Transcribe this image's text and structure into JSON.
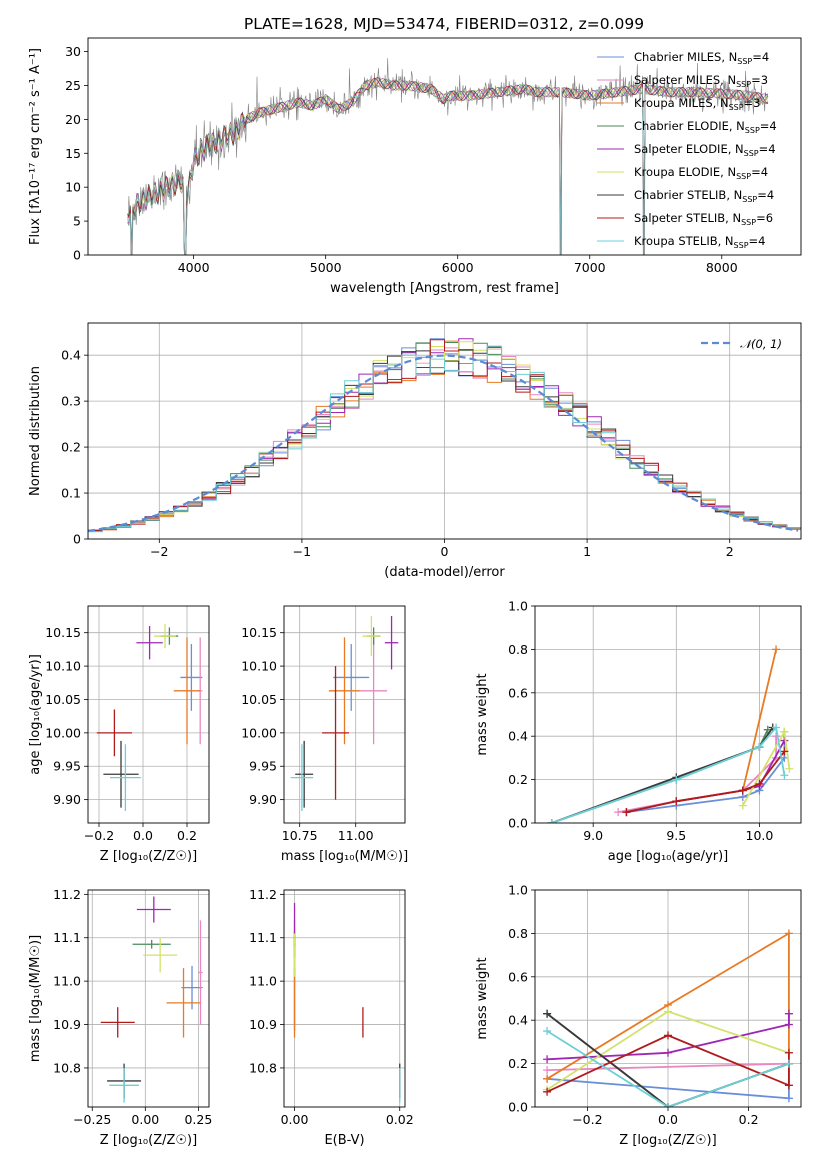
{
  "figure": {
    "title": "PLATE=1628, MJD=53474, FIBERID=0312, z=0.099"
  },
  "legend_models": [
    {
      "name": "Chabrier MILES",
      "nssp": "4",
      "color": "#6a8fd8"
    },
    {
      "name": "Salpeter MILES",
      "nssp": "3",
      "color": "#e887c2"
    },
    {
      "name": "Kroupa MILES",
      "nssp": "3",
      "color": "#e87a24"
    },
    {
      "name": "Chabrier ELODIE",
      "nssp": "4",
      "color": "#4c8a5a"
    },
    {
      "name": "Salpeter ELODIE",
      "nssp": "4",
      "color": "#9e28b4"
    },
    {
      "name": "Kroupa ELODIE",
      "nssp": "4",
      "color": "#d2e26a"
    },
    {
      "name": "Chabrier STELIB",
      "nssp": "4",
      "color": "#3a3a3a"
    },
    {
      "name": "Salpeter STELIB",
      "nssp": "6",
      "color": "#b01c1c"
    },
    {
      "name": "Kroupa STELIB",
      "nssp": "4",
      "color": "#6ccfd8"
    }
  ],
  "nssp_prefix": "N",
  "nssp_sub": "SSP",
  "chart_data": [
    {
      "id": "spectrum",
      "type": "line",
      "xlabel": "wavelength [Angstrom, rest frame]",
      "ylabel": "Flux [fλ10⁻¹⁷ erg cm⁻² s⁻¹ A⁻¹]",
      "xlim": [
        3200,
        8600
      ],
      "ylim": [
        0,
        32
      ],
      "xticks": [
        4000,
        5000,
        6000,
        7000,
        8000
      ],
      "yticks": [
        0,
        5,
        10,
        15,
        20,
        25,
        30
      ],
      "grid": false,
      "legend": "right",
      "observed_color": "#808080",
      "continuum": [
        [
          3500,
          6
        ],
        [
          3600,
          8
        ],
        [
          3700,
          9
        ],
        [
          3800,
          10
        ],
        [
          3900,
          11
        ],
        [
          3950,
          8.5
        ],
        [
          4000,
          14
        ],
        [
          4100,
          16
        ],
        [
          4200,
          17
        ],
        [
          4300,
          18
        ],
        [
          4400,
          20
        ],
        [
          4500,
          21
        ],
        [
          4600,
          21.5
        ],
        [
          4700,
          22
        ],
        [
          4800,
          22.5
        ],
        [
          4900,
          22
        ],
        [
          5000,
          23
        ],
        [
          5100,
          21.5
        ],
        [
          5200,
          22.5
        ],
        [
          5300,
          25
        ],
        [
          5400,
          25.5
        ],
        [
          5500,
          25
        ],
        [
          5600,
          25
        ],
        [
          5700,
          24.8
        ],
        [
          5800,
          24.5
        ],
        [
          5890,
          23
        ],
        [
          5950,
          23.5
        ],
        [
          6100,
          23.5
        ],
        [
          6300,
          24
        ],
        [
          6500,
          24.5
        ],
        [
          6600,
          24
        ],
        [
          6700,
          24
        ],
        [
          6800,
          24
        ],
        [
          7000,
          23.5
        ],
        [
          7200,
          24
        ],
        [
          7400,
          24.5
        ],
        [
          7600,
          24
        ],
        [
          7800,
          24
        ],
        [
          8000,
          23.8
        ],
        [
          8200,
          23.5
        ],
        [
          8350,
          23
        ]
      ],
      "dips": [
        [
          3530,
          0
        ],
        [
          3935,
          0
        ],
        [
          6780,
          0
        ],
        [
          7410,
          0
        ]
      ]
    },
    {
      "id": "residuals",
      "type": "area",
      "xlabel": "(data-model)/error",
      "ylabel": "Normed distribution",
      "xlim": [
        -2.5,
        2.5
      ],
      "ylim": [
        0,
        0.47
      ],
      "xticks": [
        -2,
        -1,
        0,
        1,
        2
      ],
      "yticks": [
        0.0,
        0.1,
        0.2,
        0.3,
        0.4
      ],
      "grid": true,
      "legend": "top-right",
      "gauss_label": "𝒩(0, 1)",
      "gauss_color": "#5b8ad6",
      "bin_width": 0.1
    },
    {
      "id": "age_vs_z",
      "type": "scatter",
      "xlabel": "Z [log₁₀(Z/Z☉)]",
      "ylabel": "age  [log₁₀(age/yr)]",
      "xlim": [
        -0.25,
        0.3
      ],
      "ylim": [
        9.865,
        10.19
      ],
      "xticks": [
        -0.2,
        0.0,
        0.2
      ],
      "xticklabels": [
        "−0.2",
        "0.0",
        "0.2"
      ],
      "yticks": [
        9.9,
        9.95,
        10.0,
        10.05,
        10.1,
        10.15
      ],
      "yticklabels": [
        "9.90",
        "9.95",
        "10.00",
        "10.05",
        "10.10",
        "10.15"
      ],
      "grid": true,
      "points": [
        {
          "x": 0.22,
          "y": 10.083,
          "xerr": 0.05,
          "yerr": 0.05
        },
        {
          "x": 0.26,
          "y": 10.063,
          "xerr": 0.01,
          "yerr": 0.08
        },
        {
          "x": 0.2,
          "y": 10.063,
          "xerr": 0.06,
          "yerr": 0.08
        },
        {
          "x": 0.12,
          "y": 10.145,
          "xerr": 0.04,
          "yerr": 0.013
        },
        {
          "x": 0.03,
          "y": 10.135,
          "xerr": 0.06,
          "yerr": 0.025
        },
        {
          "x": 0.1,
          "y": 10.145,
          "xerr": 0.05,
          "yerr": 0.018
        },
        {
          "x": -0.1,
          "y": 9.938,
          "xerr": 0.08,
          "yerr": 0.05
        },
        {
          "x": -0.13,
          "y": 10.0,
          "xerr": 0.08,
          "yerr": 0.035
        },
        {
          "x": -0.08,
          "y": 9.933,
          "xerr": 0.07,
          "yerr": 0.05
        }
      ]
    },
    {
      "id": "age_vs_mass",
      "type": "scatter",
      "xlabel": "mass [log₁₀(M/M☉)]",
      "ylabel": "",
      "xlim": [
        10.68,
        11.22
      ],
      "ylim": [
        9.865,
        10.19
      ],
      "xticks": [
        10.75,
        11.0
      ],
      "xticklabels": [
        "10.75",
        "11.00"
      ],
      "yticks": [
        9.9,
        9.95,
        10.0,
        10.05,
        10.1,
        10.15
      ],
      "yticklabels": [
        "9.90",
        "9.95",
        "10.00",
        "10.05",
        "10.10",
        "10.15"
      ],
      "grid": true,
      "points": [
        {
          "x": 10.98,
          "y": 10.083,
          "xerr": 0.08,
          "yerr": 0.05
        },
        {
          "x": 11.08,
          "y": 10.063,
          "xerr": 0.06,
          "yerr": 0.08
        },
        {
          "x": 10.95,
          "y": 10.063,
          "xerr": 0.07,
          "yerr": 0.08
        },
        {
          "x": 11.08,
          "y": 10.145,
          "xerr": 0.03,
          "yerr": 0.013
        },
        {
          "x": 11.16,
          "y": 10.135,
          "xerr": 0.03,
          "yerr": 0.04
        },
        {
          "x": 11.07,
          "y": 10.145,
          "xerr": 0.04,
          "yerr": 0.03
        },
        {
          "x": 10.77,
          "y": 9.938,
          "xerr": 0.04,
          "yerr": 0.05
        },
        {
          "x": 10.91,
          "y": 10.0,
          "xerr": 0.06,
          "yerr": 0.1
        },
        {
          "x": 10.76,
          "y": 9.933,
          "xerr": 0.05,
          "yerr": 0.05
        }
      ]
    },
    {
      "id": "weight_vs_age",
      "type": "line",
      "xlabel": "age  [log₁₀(age/yr)]",
      "ylabel": "mass weight",
      "xlim": [
        8.65,
        10.25
      ],
      "ylim": [
        0,
        1.0
      ],
      "xticks": [
        9.0,
        9.5,
        10.0
      ],
      "xticklabels": [
        "9.0",
        "9.5",
        "10.0"
      ],
      "yticks": [
        0,
        0.2,
        0.4,
        0.6,
        0.8,
        1.0
      ],
      "yticklabels": [
        "0.0",
        "0.2",
        "0.4",
        "0.6",
        "0.8",
        "1.0"
      ],
      "grid": true,
      "series": [
        {
          "values": [
            [
              9.2,
              0.05
            ],
            [
              9.5,
              0.08
            ],
            [
              9.9,
              0.12
            ],
            [
              10.0,
              0.15
            ],
            [
              10.15,
              0.3
            ],
            [
              10.15,
              0.42
            ]
          ]
        },
        {
          "values": [
            [
              9.15,
              0.05
            ],
            [
              9.5,
              0.1
            ],
            [
              9.9,
              0.15
            ],
            [
              10.1,
              0.3
            ],
            [
              10.1,
              0.4
            ]
          ]
        },
        {
          "values": [
            [
              9.2,
              0.05
            ],
            [
              9.5,
              0.1
            ],
            [
              9.9,
              0.15
            ],
            [
              10.1,
              0.8
            ]
          ]
        },
        {
          "values": [
            [
              8.75,
              0.0
            ],
            [
              9.5,
              0.2
            ],
            [
              10.0,
              0.35
            ],
            [
              10.05,
              0.43
            ]
          ]
        },
        {
          "values": [
            [
              9.2,
              0.05
            ],
            [
              9.5,
              0.1
            ],
            [
              9.9,
              0.15
            ],
            [
              10.0,
              0.17
            ],
            [
              10.15,
              0.38
            ]
          ]
        },
        {
          "values": [
            [
              9.9,
              0.08
            ],
            [
              10.15,
              0.42
            ],
            [
              10.18,
              0.25
            ]
          ]
        },
        {
          "values": [
            [
              8.75,
              0.0
            ],
            [
              9.5,
              0.21
            ],
            [
              10.0,
              0.35
            ],
            [
              10.08,
              0.44
            ]
          ]
        },
        {
          "values": [
            [
              9.2,
              0.05
            ],
            [
              9.5,
              0.1
            ],
            [
              9.9,
              0.15
            ],
            [
              10.0,
              0.18
            ],
            [
              10.15,
              0.33
            ]
          ]
        },
        {
          "values": [
            [
              8.75,
              0.0
            ],
            [
              9.5,
              0.2
            ],
            [
              10.0,
              0.35
            ],
            [
              10.1,
              0.44
            ],
            [
              10.15,
              0.22
            ]
          ]
        }
      ]
    },
    {
      "id": "mass_vs_z",
      "type": "scatter",
      "xlabel": "Z [log₁₀(Z/Z☉)]",
      "ylabel": "mass [log₁₀(M/M☉)]",
      "xlim": [
        -0.27,
        0.3
      ],
      "ylim": [
        10.71,
        11.21
      ],
      "xticks": [
        -0.25,
        0.0,
        0.25
      ],
      "xticklabels": [
        "−0.25",
        "0.00",
        "0.25"
      ],
      "yticks": [
        10.8,
        10.9,
        11.0,
        11.1,
        11.2
      ],
      "yticklabels": [
        "10.8",
        "10.9",
        "11.0",
        "11.1",
        "11.2"
      ],
      "grid": true,
      "points": [
        {
          "x": 0.22,
          "y": 10.985,
          "xerr": 0.05,
          "yerr": 0.05
        },
        {
          "x": 0.26,
          "y": 11.02,
          "xerr": 0.01,
          "yerr": 0.12
        },
        {
          "x": 0.18,
          "y": 10.95,
          "xerr": 0.08,
          "yerr": 0.08
        },
        {
          "x": 0.03,
          "y": 11.085,
          "xerr": 0.09,
          "yerr": 0.01
        },
        {
          "x": 0.04,
          "y": 11.165,
          "xerr": 0.08,
          "yerr": 0.03
        },
        {
          "x": 0.07,
          "y": 11.06,
          "xerr": 0.08,
          "yerr": 0.04
        },
        {
          "x": -0.1,
          "y": 10.77,
          "xerr": 0.08,
          "yerr": 0.04
        },
        {
          "x": -0.13,
          "y": 10.905,
          "xerr": 0.08,
          "yerr": 0.035
        },
        {
          "x": -0.1,
          "y": 10.76,
          "xerr": 0.07,
          "yerr": 0.04
        }
      ]
    },
    {
      "id": "mass_vs_ebv",
      "type": "scatter",
      "xlabel": "E(B-V)",
      "ylabel": "",
      "xlim": [
        -0.002,
        0.021
      ],
      "ylim": [
        10.71,
        11.21
      ],
      "xticks": [
        0.0,
        0.02
      ],
      "xticklabels": [
        "0.00",
        "0.02"
      ],
      "yticks": [
        10.8,
        10.9,
        11.0,
        11.1,
        11.2
      ],
      "yticklabels": [
        "10.8",
        "10.9",
        "11.0",
        "11.1",
        "11.2"
      ],
      "grid": true,
      "points": [
        {
          "x": 0.0,
          "y": 10.985,
          "xerr": 0,
          "yerr": 0.1
        },
        {
          "x": 0.0,
          "y": 11.02,
          "xerr": 0,
          "yerr": 0.12
        },
        {
          "x": 0.0,
          "y": 10.95,
          "xerr": 0,
          "yerr": 0.08
        },
        {
          "x": 0.0,
          "y": 11.085,
          "xerr": 0,
          "yerr": 0.03
        },
        {
          "x": 0.0,
          "y": 11.13,
          "xerr": 0,
          "yerr": 0.05
        },
        {
          "x": 0.0,
          "y": 11.06,
          "xerr": 0,
          "yerr": 0.05
        },
        {
          "x": 0.02,
          "y": 10.77,
          "xerr": 0,
          "yerr": 0.04
        },
        {
          "x": 0.013,
          "y": 10.905,
          "xerr": 0,
          "yerr": 0.035
        },
        {
          "x": 0.02,
          "y": 10.76,
          "xerr": 0,
          "yerr": 0.04
        }
      ]
    },
    {
      "id": "weight_vs_z",
      "type": "line",
      "xlabel": "Z [log₁₀(Z/Z☉)]",
      "ylabel": "mass weight",
      "xlim": [
        -0.33,
        0.33
      ],
      "ylim": [
        0,
        1.0
      ],
      "xticks": [
        -0.2,
        0.0,
        0.2
      ],
      "xticklabels": [
        "−0.2",
        "0.0",
        "0.2"
      ],
      "yticks": [
        0,
        0.2,
        0.4,
        0.6,
        0.8,
        1.0
      ],
      "yticklabels": [
        "0.0",
        "0.2",
        "0.4",
        "0.6",
        "0.8",
        "1.0"
      ],
      "grid": true,
      "series": [
        {
          "values": [
            [
              -0.3,
              0.13
            ],
            [
              0.3,
              0.04
            ],
            [
              0.3,
              0.2
            ]
          ]
        },
        {
          "values": [
            [
              -0.3,
              0.17
            ],
            [
              0.3,
              0.2
            ]
          ]
        },
        {
          "values": [
            [
              -0.3,
              0.13
            ],
            [
              0.0,
              0.47
            ],
            [
              0.3,
              0.8
            ],
            [
              0.3,
              0.25
            ]
          ]
        },
        {
          "values": [
            [
              -0.3,
              0.43
            ],
            [
              0.0,
              0.0
            ],
            [
              0.3,
              0.2
            ]
          ]
        },
        {
          "values": [
            [
              -0.3,
              0.22
            ],
            [
              0.0,
              0.25
            ],
            [
              0.3,
              0.38
            ],
            [
              0.3,
              0.43
            ]
          ]
        },
        {
          "values": [
            [
              -0.3,
              0.08
            ],
            [
              0.0,
              0.44
            ],
            [
              0.3,
              0.25
            ]
          ]
        },
        {
          "values": [
            [
              -0.3,
              0.43
            ],
            [
              0.0,
              0.0
            ],
            [
              0.3,
              0.2
            ]
          ]
        },
        {
          "values": [
            [
              -0.3,
              0.07
            ],
            [
              0.0,
              0.33
            ],
            [
              0.3,
              0.1
            ],
            [
              0.3,
              0.25
            ]
          ]
        },
        {
          "values": [
            [
              -0.3,
              0.35
            ],
            [
              0.0,
              0.0
            ],
            [
              0.3,
              0.2
            ]
          ]
        }
      ]
    }
  ]
}
